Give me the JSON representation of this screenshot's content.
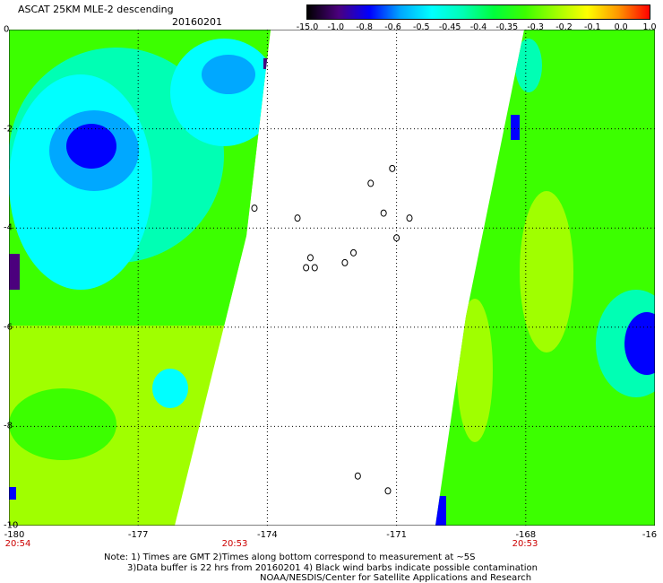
{
  "header": {
    "title": "ASCAT 25KM MLE-2 descending",
    "date": "20160201"
  },
  "colorbar": {
    "labels": [
      "-15.0",
      "-1.0",
      "-0.8",
      "-0.6",
      "-0.5",
      "-0.45",
      "-0.4",
      "-0.35",
      "-0.3",
      "-0.2",
      "-0.1",
      "0.0",
      "1.0"
    ],
    "colors": [
      "#000000",
      "#4b007d",
      "#0000ff",
      "#00a8ff",
      "#00ffff",
      "#00ffb4",
      "#00ff3c",
      "#3cff00",
      "#a0ff00",
      "#ffff00",
      "#ff9600",
      "#ff0000"
    ]
  },
  "axes": {
    "y_ticks": [
      "0",
      "-2",
      "-4",
      "-6",
      "-8",
      "-10"
    ],
    "x_ticks": [
      "-180",
      "-177",
      "-174",
      "-171",
      "-168",
      "-16"
    ],
    "time_labels": [
      "20:54",
      "20:53",
      "20:53"
    ]
  },
  "map": {
    "lon_range": [
      -180,
      -165
    ],
    "lat_range": [
      -10,
      0
    ],
    "islands": [
      {
        "lon": -173.1,
        "lat": -4.8
      },
      {
        "lon": -172.9,
        "lat": -4.8
      },
      {
        "lon": -172.2,
        "lat": -4.7
      },
      {
        "lon": -171.6,
        "lat": -3.1
      },
      {
        "lon": -171.1,
        "lat": -2.8
      },
      {
        "lon": -171.3,
        "lat": -3.7
      },
      {
        "lon": -170.7,
        "lat": -3.8
      },
      {
        "lon": -171.0,
        "lat": -4.2
      },
      {
        "lon": -172.0,
        "lat": -4.5
      },
      {
        "lon": -173.0,
        "lat": -4.6
      },
      {
        "lon": -171.9,
        "lat": -9.0
      },
      {
        "lon": -171.2,
        "lat": -9.3
      },
      {
        "lon": -174.3,
        "lat": -3.6
      },
      {
        "lon": -173.3,
        "lat": -3.8
      }
    ]
  },
  "notes": {
    "line1": "Note: 1) Times are GMT 2)Times along bottom correspond to measurement at ~5S",
    "line2": "3)Data buffer is 22 hrs from 20160201 4) Black wind barbs indicate possible contamination",
    "line3": "NOAA/NESDIS/Center for Satellite Applications and Research"
  }
}
